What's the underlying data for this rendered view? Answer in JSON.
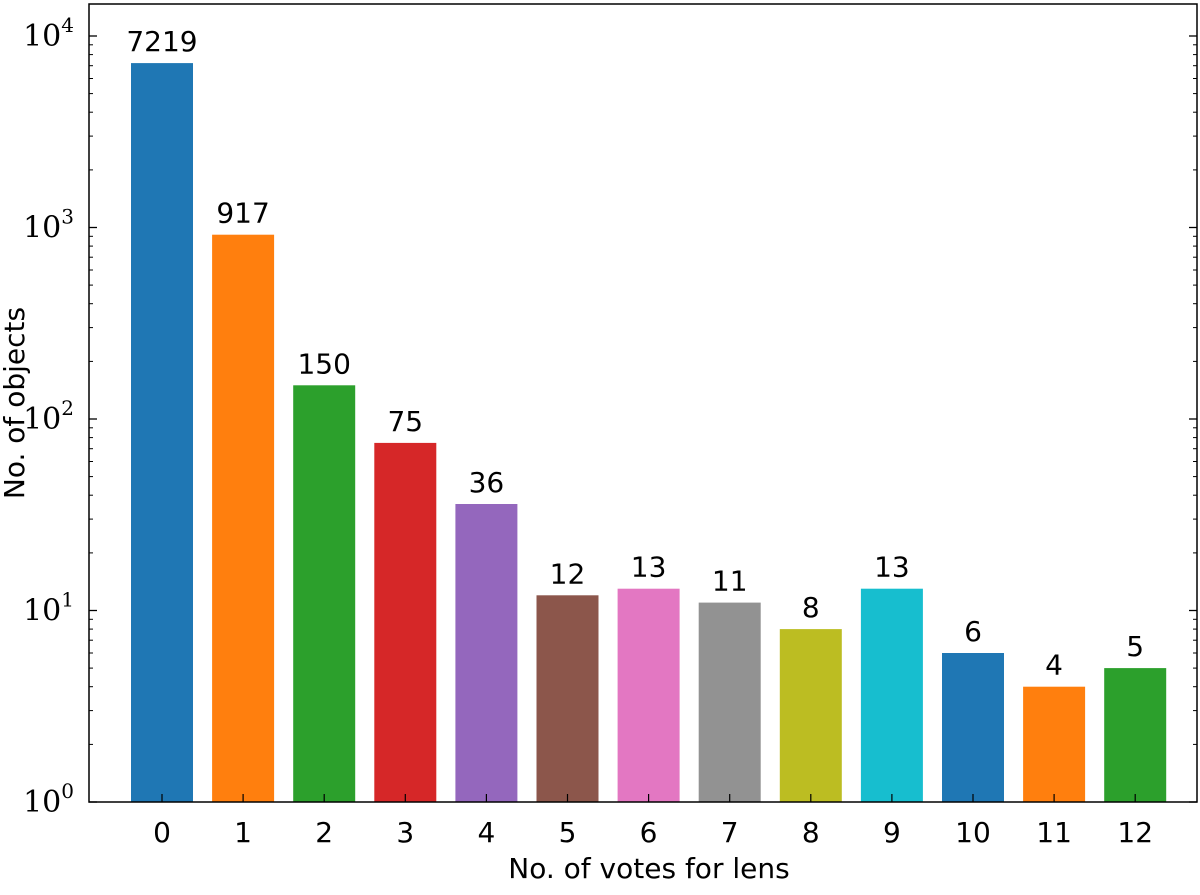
{
  "chart_data": {
    "type": "bar",
    "xlabel": "No. of votes for lens",
    "ylabel": "No. of objects",
    "yscale": "log",
    "ylim": [
      1,
      10000
    ],
    "yticks": [
      {
        "value": 1,
        "base": "10",
        "exp": "0"
      },
      {
        "value": 10,
        "base": "10",
        "exp": "1"
      },
      {
        "value": 100,
        "base": "10",
        "exp": "2"
      },
      {
        "value": 1000,
        "base": "10",
        "exp": "3"
      },
      {
        "value": 10000,
        "base": "10",
        "exp": "4"
      }
    ],
    "categories": [
      "0",
      "1",
      "2",
      "3",
      "4",
      "5",
      "6",
      "7",
      "8",
      "9",
      "10",
      "11",
      "12"
    ],
    "values": [
      7219,
      917,
      150,
      75,
      36,
      12,
      13,
      11,
      8,
      13,
      6,
      4,
      5
    ],
    "data_labels": [
      "7219",
      "917",
      "150",
      "75",
      "36",
      "12",
      "13",
      "11",
      "8",
      "13",
      "6",
      "4",
      "5"
    ],
    "colors": [
      "#1f77b4",
      "#ff7f0e",
      "#2ca02c",
      "#d62728",
      "#9467bd",
      "#8c564b",
      "#e377c2",
      "#929292",
      "#bcbd22",
      "#17becf",
      "#1f77b4",
      "#ff7f0e",
      "#2ca02c"
    ],
    "grid": false,
    "legend": "none"
  }
}
